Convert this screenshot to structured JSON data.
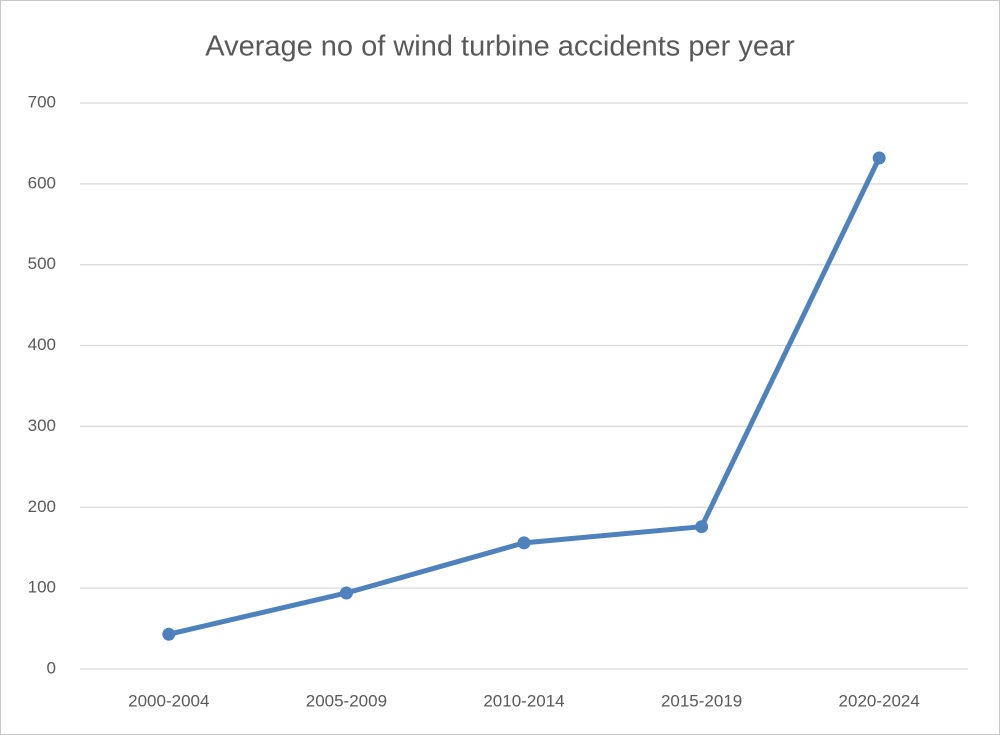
{
  "chart_data": {
    "type": "line",
    "title": "Average no of wind turbine accidents per year",
    "categories": [
      "2000-2004",
      "2005-2009",
      "2010-2014",
      "2015-2019",
      "2020-2024"
    ],
    "values": [
      43,
      94,
      156,
      176,
      632
    ],
    "color": "#4f81bd",
    "ylim": [
      0,
      700
    ],
    "yticks": [
      0,
      100,
      200,
      300,
      400,
      500,
      600,
      700
    ],
    "grid": true
  }
}
